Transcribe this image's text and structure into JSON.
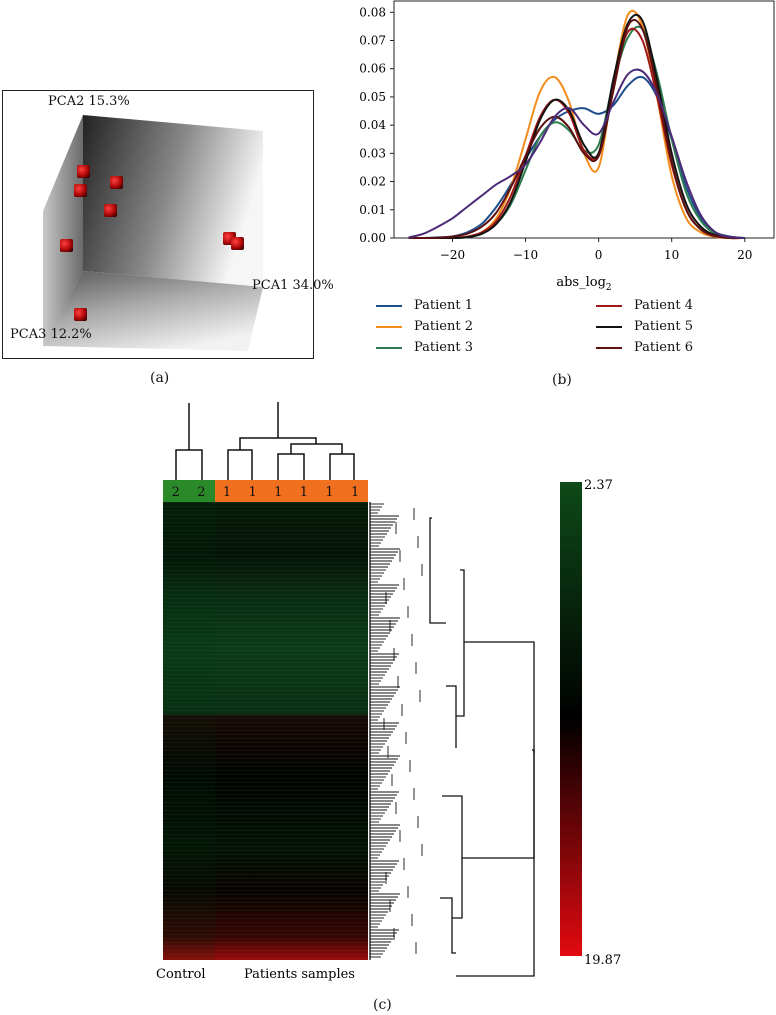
{
  "panel_labels": {
    "a": "(a)",
    "b": "(b)",
    "c": "(c)"
  },
  "colors": {
    "heat_low": "#e20a10",
    "heat_mid": "#000000",
    "heat_high": "#0e4a18",
    "control": "#2a8a2a",
    "patient": "#f07020"
  },
  "chart_data": [
    {
      "type": "scatter",
      "subtype": "3d-pca",
      "axes": {
        "pc1": "PCA1 34.0%",
        "pc2": "PCA2 15.3%",
        "pc3": "PCA3 12.2%"
      },
      "points_count": 8
    },
    {
      "type": "line",
      "xlabel": "abs_log",
      "xlabel_sub": "2",
      "ylabel": "",
      "xlim": [
        -28,
        24
      ],
      "ylim": [
        0,
        0.084
      ],
      "xticks": [
        -20,
        -10,
        0,
        10,
        20
      ],
      "xtick_labels": [
        "−20",
        "−10",
        "0",
        "10",
        "20"
      ],
      "yticks": [
        0.0,
        0.01,
        0.02,
        0.03,
        0.04,
        0.05,
        0.06,
        0.07,
        0.08
      ],
      "ytick_labels": [
        "0.00",
        "0.01",
        "0.02",
        "0.03",
        "0.04",
        "0.05",
        "0.06",
        "0.07",
        "0.08"
      ],
      "legend_position": "bottom",
      "x": [
        -26,
        -24,
        -22,
        -20,
        -18,
        -16,
        -14,
        -12,
        -10,
        -8,
        -6,
        -4,
        -2,
        0,
        2,
        4,
        6,
        8,
        10,
        12,
        14,
        16,
        18,
        20
      ],
      "series": [
        {
          "name": "Patient 1",
          "color": "#1f4e8c",
          "values": [
            0,
            0,
            0.0002,
            0.0006,
            0.002,
            0.005,
            0.011,
            0.019,
            0.028,
            0.036,
            0.042,
            0.045,
            0.046,
            0.044,
            0.047,
            0.054,
            0.057,
            0.05,
            0.035,
            0.018,
            0.007,
            0.002,
            0.0005,
            0
          ]
        },
        {
          "name": "Patient 2",
          "color": "#f28c1c",
          "values": [
            0,
            0,
            0,
            0.0001,
            0.0004,
            0.002,
            0.007,
            0.018,
            0.035,
            0.052,
            0.057,
            0.048,
            0.03,
            0.025,
            0.055,
            0.079,
            0.075,
            0.05,
            0.022,
            0.007,
            0.002,
            0.0004,
            0,
            0
          ]
        },
        {
          "name": "Patient 3",
          "color": "#2e7d4f",
          "values": [
            0,
            0,
            0,
            0,
            0.0003,
            0.0015,
            0.005,
            0.012,
            0.024,
            0.036,
            0.041,
            0.038,
            0.031,
            0.033,
            0.055,
            0.071,
            0.074,
            0.058,
            0.035,
            0.016,
            0.006,
            0.0015,
            0.0002,
            0
          ]
        },
        {
          "name": "Patient 4",
          "color": "#a01818",
          "values": [
            0,
            0,
            0,
            0.0001,
            0.0005,
            0.002,
            0.006,
            0.015,
            0.029,
            0.043,
            0.049,
            0.044,
            0.031,
            0.03,
            0.055,
            0.073,
            0.07,
            0.05,
            0.026,
            0.01,
            0.003,
            0.0006,
            0,
            0
          ]
        },
        {
          "name": "Patient 5",
          "color": "#111111",
          "values": [
            0,
            0,
            0,
            0,
            0.0003,
            0.0015,
            0.005,
            0.013,
            0.027,
            0.042,
            0.049,
            0.045,
            0.033,
            0.03,
            0.056,
            0.076,
            0.077,
            0.056,
            0.03,
            0.012,
            0.004,
            0.001,
            0.0001,
            0
          ]
        },
        {
          "name": "Patient 6",
          "color": "#5c1010",
          "values": [
            0,
            0,
            0.0001,
            0.0005,
            0.0015,
            0.004,
            0.009,
            0.018,
            0.029,
            0.039,
            0.043,
            0.039,
            0.03,
            0.029,
            0.052,
            0.075,
            0.074,
            0.053,
            0.027,
            0.01,
            0.003,
            0.0007,
            0,
            0
          ]
        },
        {
          "name": "",
          "color": "#4b2a78",
          "values": [
            0.0002,
            0.0015,
            0.004,
            0.007,
            0.011,
            0.015,
            0.019,
            0.022,
            0.026,
            0.034,
            0.043,
            0.046,
            0.04,
            0.037,
            0.048,
            0.058,
            0.059,
            0.051,
            0.036,
            0.02,
            0.008,
            0.002,
            0.0004,
            0
          ]
        }
      ]
    },
    {
      "type": "heatmap",
      "column_groups": [
        "2",
        "2",
        "1",
        "1",
        "1",
        "1",
        "1",
        "1"
      ],
      "group_labels": {
        "control": "Control",
        "patients": "Patients samples"
      },
      "scale": {
        "max_label": "2.37",
        "min_label": "19.87",
        "min": 2.37,
        "max": 19.87
      }
    }
  ]
}
